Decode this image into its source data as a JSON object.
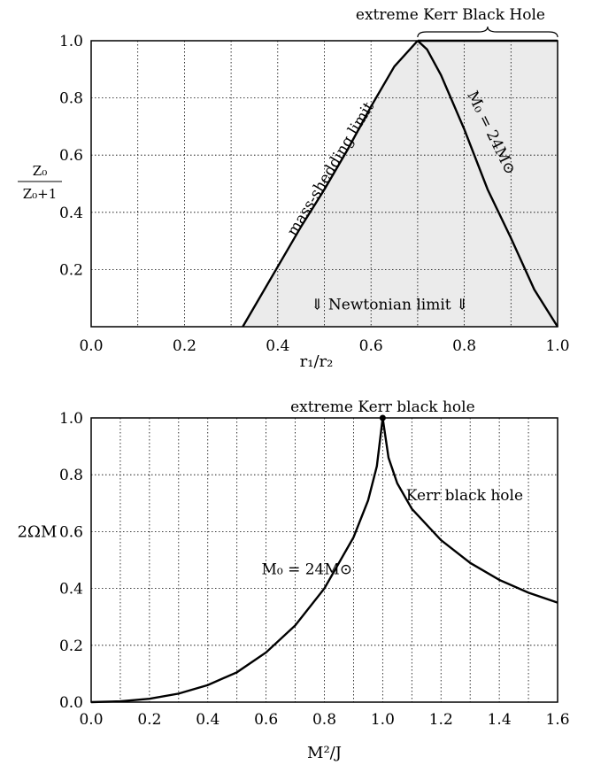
{
  "chart_data": [
    {
      "type": "area",
      "xlabel": "r₁/r₂",
      "ylabel_num": "Z₀",
      "ylabel_den": "Z₀+1",
      "xlim": [
        0.0,
        1.0
      ],
      "ylim": [
        0.0,
        1.0
      ],
      "xticks": [
        "0.0",
        "0.2",
        "0.4",
        "0.6",
        "0.8",
        "1.0"
      ],
      "yticks": [
        "0.2",
        "0.4",
        "0.6",
        "0.8",
        "1.0"
      ],
      "grid": true,
      "shaded_region": "between mass-shedding limit and M₀ = 24M⊙ curve",
      "series": [
        {
          "name": "mass-shedding limit",
          "x": [
            0.325,
            0.4,
            0.45,
            0.5,
            0.55,
            0.6,
            0.65,
            0.7
          ],
          "y": [
            0.0,
            0.21,
            0.35,
            0.48,
            0.62,
            0.77,
            0.91,
            1.0
          ]
        },
        {
          "name": "M₀ = 24M⊙",
          "x": [
            0.7,
            0.72,
            0.75,
            0.8,
            0.85,
            0.9,
            0.95,
            1.0
          ],
          "y": [
            1.0,
            0.97,
            0.88,
            0.69,
            0.48,
            0.31,
            0.13,
            0.0
          ]
        },
        {
          "name": "extreme Kerr Black Hole",
          "x": [
            0.7,
            1.0
          ],
          "y": [
            1.0,
            1.0
          ]
        }
      ],
      "annotations": {
        "top_brace": "extreme Kerr Black Hole",
        "left_curve": "mass-shedding limit",
        "right_curve": "M₀ = 24M⊙",
        "bottom": "⇓ Newtonian limit ⇓"
      }
    },
    {
      "type": "line",
      "xlabel": "M²/J",
      "ylabel": "2ΩM",
      "xlim": [
        0.0,
        1.6
      ],
      "ylim": [
        0.0,
        1.0
      ],
      "xticks": [
        "0.0",
        "0.2",
        "0.4",
        "0.6",
        "0.8",
        "1.0",
        "1.2",
        "1.4",
        "1.6"
      ],
      "yticks": [
        "0.0",
        "0.2",
        "0.4",
        "0.6",
        "0.8",
        "1.0"
      ],
      "grid": true,
      "series": [
        {
          "name": "M₀ = 24M⊙",
          "x": [
            0.0,
            0.1,
            0.2,
            0.3,
            0.4,
            0.5,
            0.6,
            0.7,
            0.8,
            0.9,
            0.95,
            0.98,
            1.0
          ],
          "y": [
            0.0,
            0.003,
            0.012,
            0.03,
            0.06,
            0.105,
            0.175,
            0.27,
            0.4,
            0.58,
            0.71,
            0.83,
            1.0
          ]
        },
        {
          "name": "Kerr black hole",
          "x": [
            1.0,
            1.02,
            1.05,
            1.1,
            1.2,
            1.3,
            1.4,
            1.5,
            1.6
          ],
          "y": [
            1.0,
            0.86,
            0.77,
            0.68,
            0.57,
            0.49,
            0.43,
            0.385,
            0.35
          ]
        }
      ],
      "marker": {
        "x": 1.0,
        "y": 1.0
      },
      "annotations": {
        "top": "extreme Kerr black hole",
        "right_curve": "Kerr black hole",
        "left_curve": "M₀ = 24M⊙"
      }
    }
  ]
}
